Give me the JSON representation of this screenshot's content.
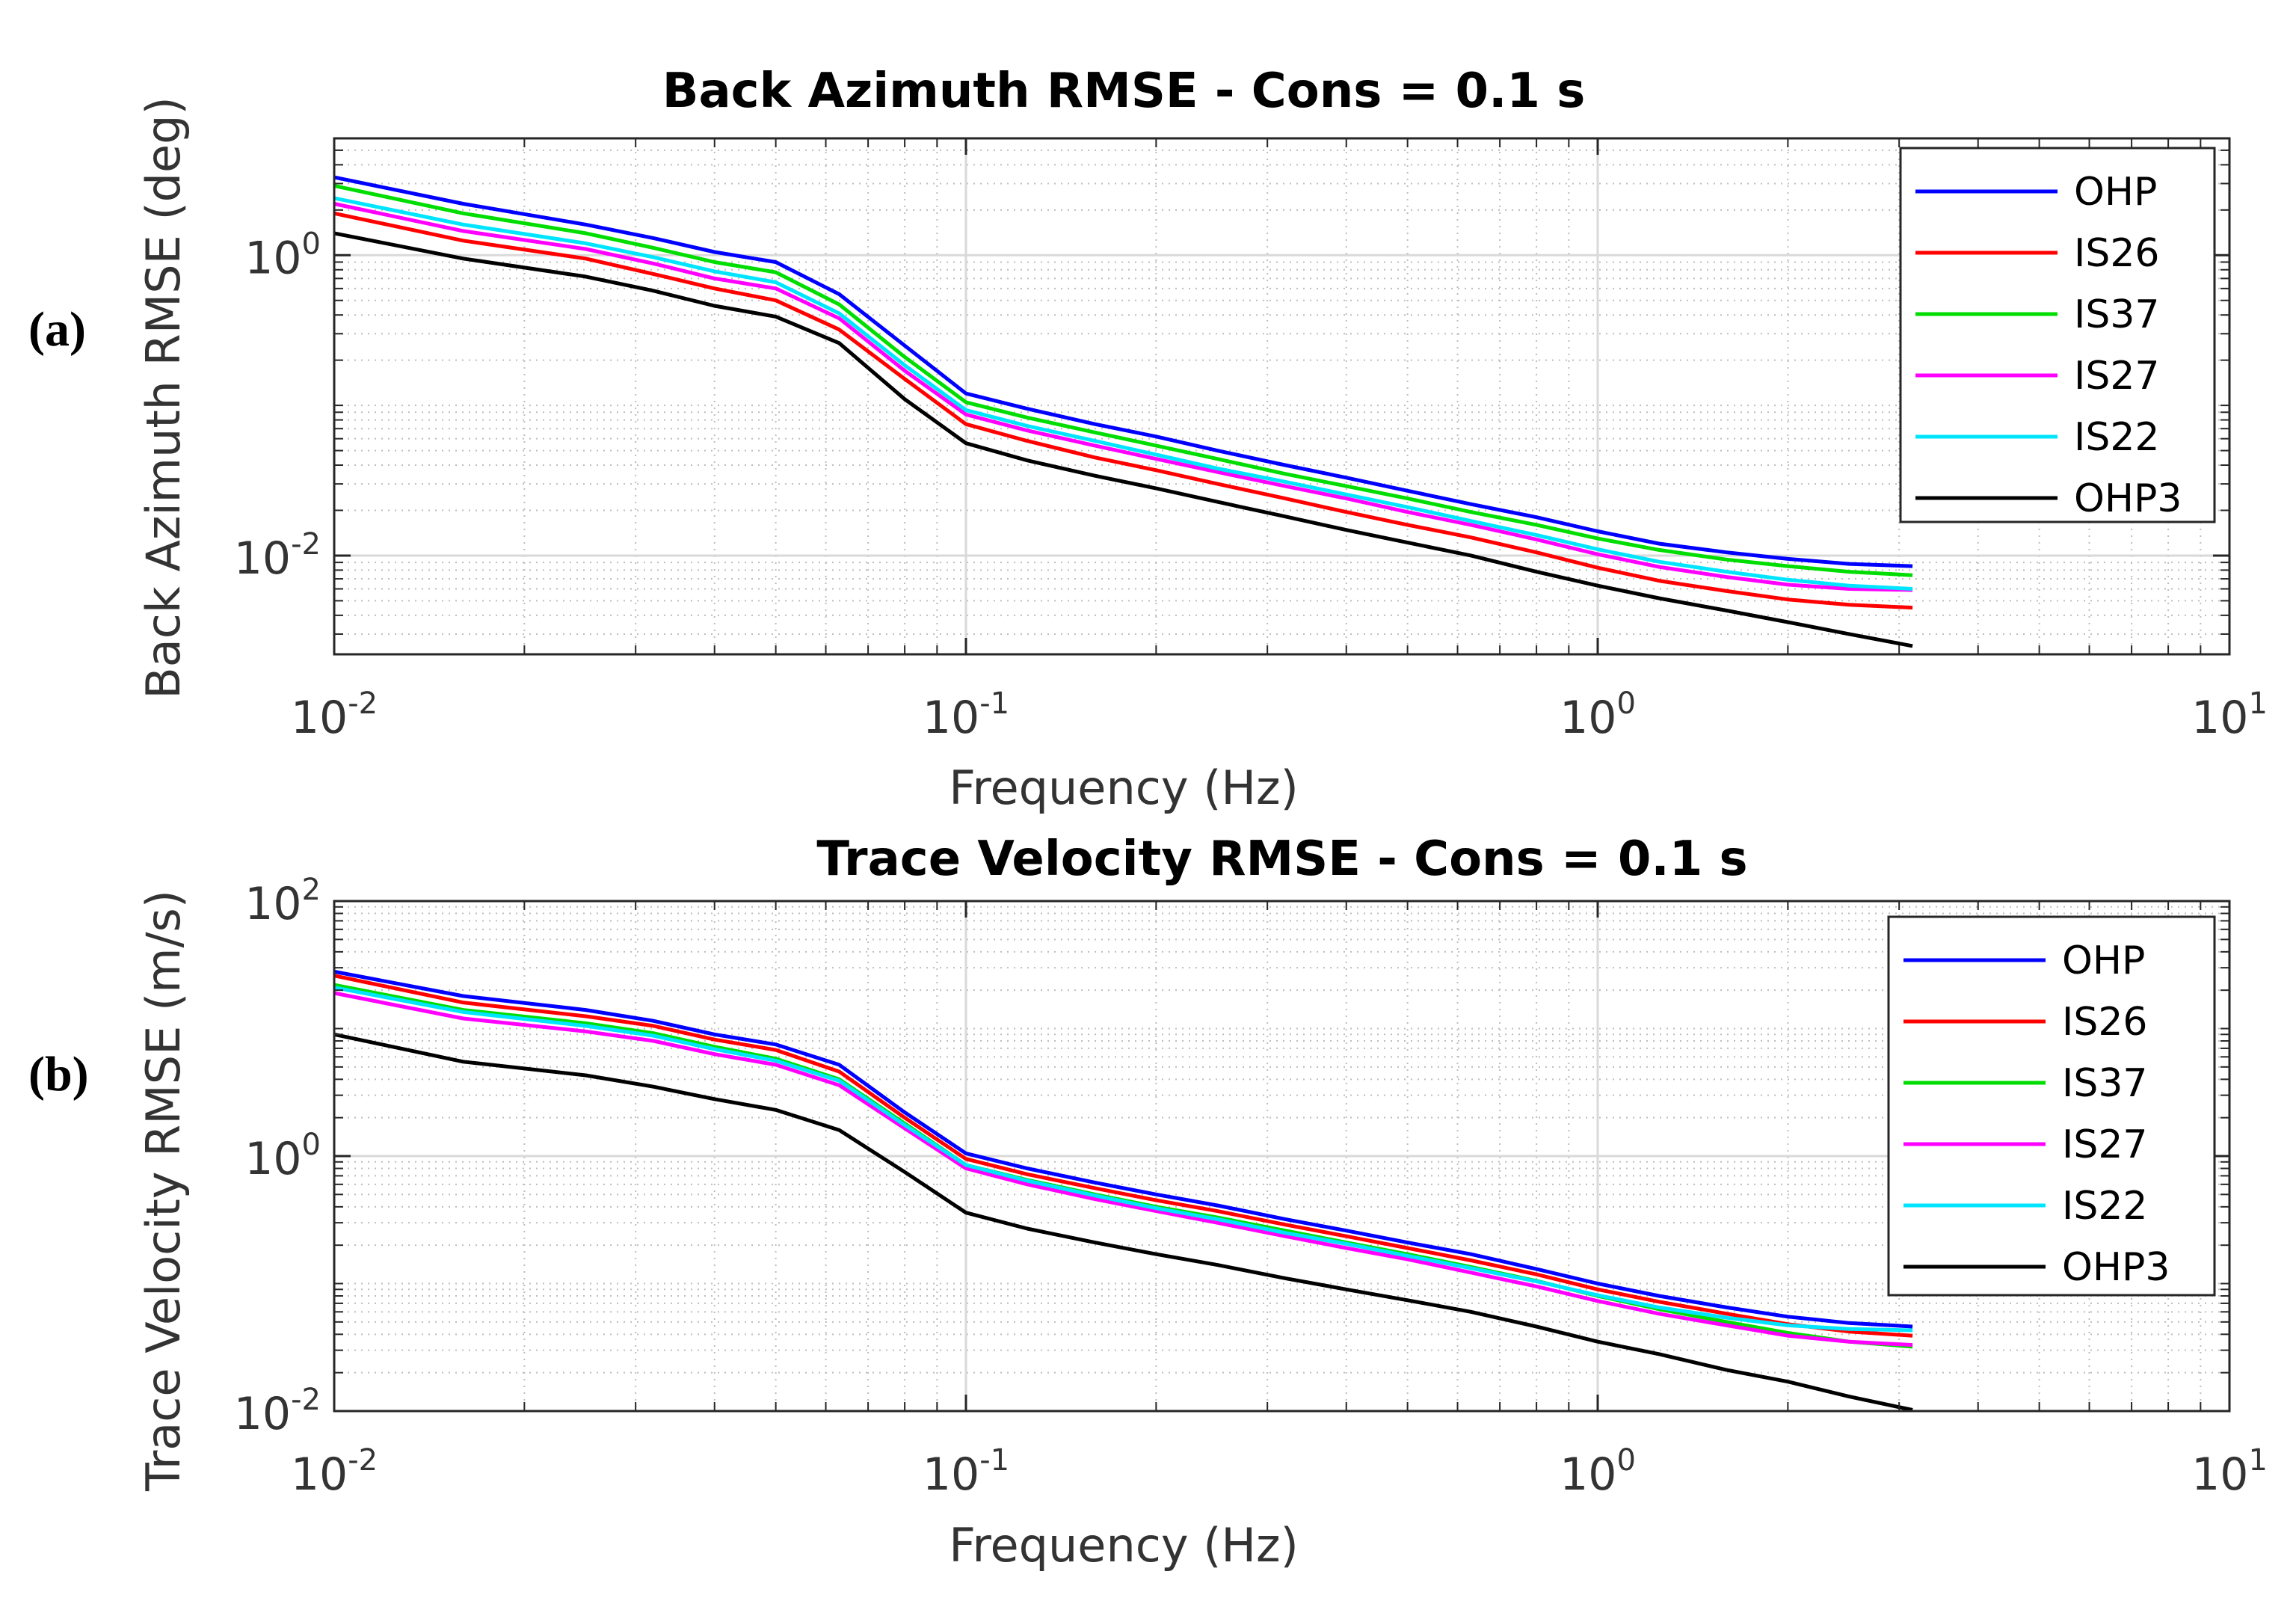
{
  "panel_labels": [
    "(a)",
    "(b)"
  ],
  "chart_data": [
    {
      "type": "line",
      "title": "Back Azimuth RMSE - Cons = 0.1 s",
      "xlabel": "Frequency (Hz)",
      "ylabel": "Back Azimuth RMSE (deg)",
      "xscale": "log",
      "yscale": "log",
      "xlim": [
        0.01,
        10
      ],
      "ylim": [
        0.0022,
        6
      ],
      "grid": true,
      "legend_position": "top-right",
      "xticks": [
        {
          "base": "10",
          "exp": "-2"
        },
        {
          "base": "10",
          "exp": "-1"
        },
        {
          "base": "10",
          "exp": "0"
        },
        {
          "base": "10",
          "exp": "1"
        }
      ],
      "yticks": [
        {
          "value": 0.01,
          "base": "10",
          "exp": "-2"
        },
        {
          "value": 1,
          "base": "10",
          "exp": "0"
        }
      ],
      "x": [
        0.01,
        0.016,
        0.025,
        0.032,
        0.04,
        0.05,
        0.063,
        0.08,
        0.1,
        0.125,
        0.16,
        0.2,
        0.25,
        0.32,
        0.4,
        0.5,
        0.63,
        0.8,
        1.0,
        1.25,
        1.6,
        2.0,
        2.5,
        3.15
      ],
      "series": [
        {
          "name": "OHP",
          "color": "#0000ff",
          "values": [
            3.3,
            2.2,
            1.6,
            1.3,
            1.05,
            0.9,
            0.55,
            0.25,
            0.12,
            0.095,
            0.075,
            0.062,
            0.05,
            0.04,
            0.033,
            0.027,
            0.022,
            0.018,
            0.0145,
            0.012,
            0.0105,
            0.0095,
            0.0088,
            0.0085
          ]
        },
        {
          "name": "IS26",
          "color": "#ff0000",
          "values": [
            1.9,
            1.25,
            0.95,
            0.75,
            0.6,
            0.5,
            0.32,
            0.15,
            0.075,
            0.058,
            0.045,
            0.037,
            0.03,
            0.024,
            0.0195,
            0.016,
            0.0132,
            0.0105,
            0.0083,
            0.0068,
            0.0058,
            0.0051,
            0.0047,
            0.0045
          ]
        },
        {
          "name": "IS37",
          "color": "#00dd00",
          "values": [
            2.9,
            1.9,
            1.4,
            1.12,
            0.9,
            0.77,
            0.47,
            0.21,
            0.105,
            0.083,
            0.066,
            0.054,
            0.044,
            0.035,
            0.029,
            0.024,
            0.0195,
            0.016,
            0.013,
            0.0109,
            0.0094,
            0.0085,
            0.0078,
            0.0074
          ]
        },
        {
          "name": "IS27",
          "color": "#ff00ff",
          "values": [
            2.2,
            1.45,
            1.1,
            0.88,
            0.7,
            0.6,
            0.38,
            0.17,
            0.087,
            0.068,
            0.054,
            0.044,
            0.036,
            0.029,
            0.024,
            0.0195,
            0.016,
            0.0128,
            0.0102,
            0.0084,
            0.0072,
            0.0064,
            0.006,
            0.0059
          ]
        },
        {
          "name": "IS22",
          "color": "#00e5ff",
          "values": [
            2.4,
            1.6,
            1.2,
            0.97,
            0.78,
            0.66,
            0.41,
            0.185,
            0.093,
            0.073,
            0.058,
            0.047,
            0.038,
            0.031,
            0.0255,
            0.021,
            0.017,
            0.0137,
            0.011,
            0.0091,
            0.0078,
            0.0069,
            0.0063,
            0.006
          ]
        },
        {
          "name": "OHP3",
          "color": "#000000",
          "values": [
            1.4,
            0.95,
            0.72,
            0.58,
            0.46,
            0.39,
            0.26,
            0.11,
            0.056,
            0.043,
            0.034,
            0.028,
            0.0228,
            0.0182,
            0.0148,
            0.0122,
            0.01,
            0.0078,
            0.0063,
            0.0052,
            0.0043,
            0.0036,
            0.003,
            0.0025
          ]
        }
      ]
    },
    {
      "type": "line",
      "title": "Trace Velocity RMSE - Cons = 0.1 s",
      "xlabel": "Frequency (Hz)",
      "ylabel": "Trace Velocity RMSE (m/s)",
      "xscale": "log",
      "yscale": "log",
      "xlim": [
        0.01,
        10
      ],
      "ylim": [
        0.01,
        100
      ],
      "grid": true,
      "legend_position": "top-right",
      "xticks": [
        {
          "base": "10",
          "exp": "-2"
        },
        {
          "base": "10",
          "exp": "-1"
        },
        {
          "base": "10",
          "exp": "0"
        },
        {
          "base": "10",
          "exp": "1"
        }
      ],
      "yticks": [
        {
          "value": 0.01,
          "base": "10",
          "exp": "-2"
        },
        {
          "value": 1,
          "base": "10",
          "exp": "0"
        },
        {
          "value": 100,
          "base": "10",
          "exp": "2"
        }
      ],
      "x": [
        0.01,
        0.016,
        0.025,
        0.032,
        0.04,
        0.05,
        0.063,
        0.08,
        0.1,
        0.125,
        0.16,
        0.2,
        0.25,
        0.32,
        0.4,
        0.5,
        0.63,
        0.8,
        1.0,
        1.25,
        1.6,
        2.0,
        2.5,
        3.15
      ],
      "series": [
        {
          "name": "OHP",
          "color": "#0000ff",
          "values": [
            28,
            18,
            14,
            11.5,
            9,
            7.5,
            5.2,
            2.2,
            1.05,
            0.8,
            0.62,
            0.5,
            0.41,
            0.32,
            0.26,
            0.21,
            0.17,
            0.13,
            0.1,
            0.08,
            0.065,
            0.055,
            0.049,
            0.046
          ]
        },
        {
          "name": "IS26",
          "color": "#ff0000",
          "values": [
            26,
            16,
            12.5,
            10.5,
            8.2,
            6.8,
            4.6,
            2.0,
            0.95,
            0.72,
            0.56,
            0.45,
            0.37,
            0.29,
            0.235,
            0.19,
            0.152,
            0.118,
            0.09,
            0.072,
            0.058,
            0.048,
            0.042,
            0.039
          ]
        },
        {
          "name": "IS37",
          "color": "#00dd00",
          "values": [
            22,
            14,
            11,
            9.2,
            7.2,
            5.8,
            4.0,
            1.8,
            0.85,
            0.65,
            0.5,
            0.4,
            0.33,
            0.26,
            0.21,
            0.17,
            0.135,
            0.105,
            0.08,
            0.063,
            0.05,
            0.041,
            0.035,
            0.032
          ]
        },
        {
          "name": "IS27",
          "color": "#ff00ff",
          "values": [
            19,
            12,
            9.5,
            8.0,
            6.3,
            5.2,
            3.6,
            1.65,
            0.8,
            0.6,
            0.46,
            0.37,
            0.3,
            0.235,
            0.19,
            0.155,
            0.122,
            0.095,
            0.073,
            0.058,
            0.047,
            0.039,
            0.035,
            0.033
          ]
        },
        {
          "name": "IS22",
          "color": "#00e5ff",
          "values": [
            21,
            13.5,
            10.5,
            8.8,
            6.9,
            5.6,
            3.9,
            1.75,
            0.85,
            0.64,
            0.49,
            0.39,
            0.32,
            0.25,
            0.205,
            0.165,
            0.132,
            0.104,
            0.081,
            0.065,
            0.054,
            0.047,
            0.044,
            0.043
          ]
        },
        {
          "name": "OHP3",
          "color": "#000000",
          "values": [
            9,
            5.5,
            4.3,
            3.5,
            2.8,
            2.3,
            1.6,
            0.75,
            0.36,
            0.27,
            0.21,
            0.17,
            0.14,
            0.11,
            0.09,
            0.074,
            0.06,
            0.046,
            0.035,
            0.028,
            0.021,
            0.017,
            0.013,
            0.0102
          ]
        }
      ]
    }
  ]
}
